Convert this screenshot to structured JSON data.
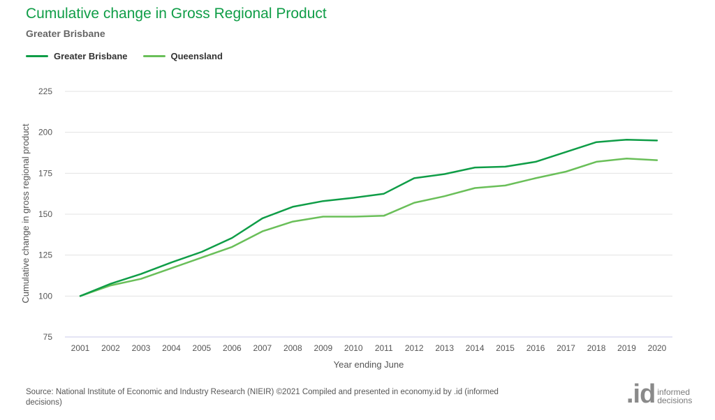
{
  "title": "Cumulative change in Gross Regional Product",
  "subtitle": "Greater Brisbane",
  "source": "Source: National Institute of Economic and Industry Research (NIEIR) ©2021 Compiled and presented in economy.id by .id (informed decisions)",
  "logo": {
    "mark": ".id",
    "line1": "informed",
    "line2": "decisions"
  },
  "chart_data": {
    "type": "line",
    "title": "Cumulative change in Gross Regional Product",
    "subtitle": "Greater Brisbane",
    "xlabel": "Year ending June",
    "ylabel": "Cumulative change in gross regional product",
    "x": [
      "2001",
      "2002",
      "2003",
      "2004",
      "2005",
      "2006",
      "2007",
      "2008",
      "2009",
      "2010",
      "2011",
      "2012",
      "2013",
      "2014",
      "2015",
      "2016",
      "2017",
      "2018",
      "2019",
      "2020"
    ],
    "yticks": [
      75,
      100,
      125,
      150,
      175,
      200,
      225
    ],
    "ylim": [
      75,
      225
    ],
    "grid": true,
    "legend_position": "top-left",
    "series": [
      {
        "name": "Greater Brisbane",
        "color": "#0f9d47",
        "values": [
          100,
          107.5,
          113.5,
          120.5,
          127,
          135.5,
          147.5,
          154.5,
          158,
          160,
          162.5,
          172,
          174.5,
          178.5,
          179,
          182,
          188,
          194,
          195.5,
          195
        ]
      },
      {
        "name": "Queensland",
        "color": "#6abf59",
        "values": [
          100,
          106.5,
          110.5,
          117,
          123.5,
          130,
          139.5,
          145.5,
          148.5,
          148.5,
          149,
          157,
          161,
          166,
          167.5,
          172,
          176,
          182,
          184,
          183
        ]
      }
    ]
  }
}
